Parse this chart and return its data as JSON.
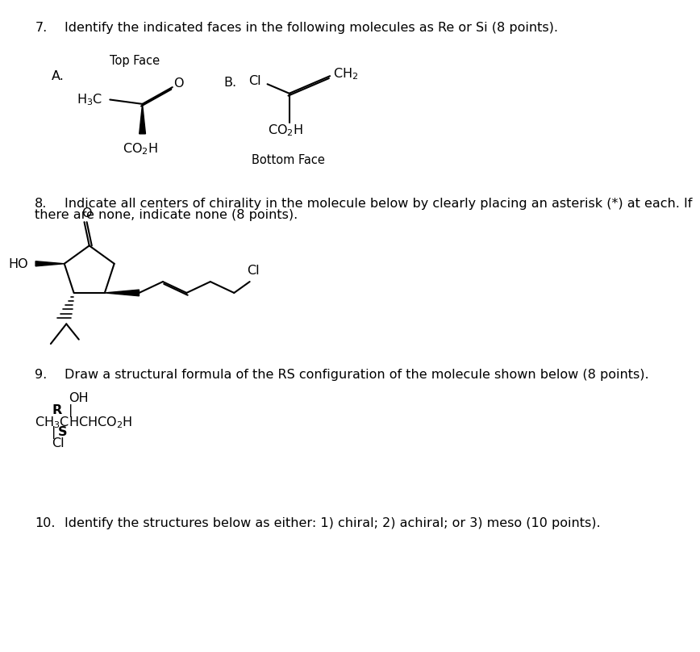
{
  "bg_color": "#ffffff",
  "text_color": "#000000",
  "q7_num": "7.",
  "q7_desc": "Identify the indicated faces in the following molecules as Re or Si (8 points).",
  "q7_A": "A.",
  "q7_topface": "Top Face",
  "q7_B": "B.",
  "q7_bottomface": "Bottom Face",
  "q8_num": "8.",
  "q8_desc": "Indicate all centers of chirality in the molecule below by clearly placing an asterisk (*) at each. If",
  "q8_desc2": "there are none, indicate none (8 points).",
  "q9_num": "9.",
  "q9_desc": "Draw a structural formula of the RS configuration of the molecule shown below (8 points).",
  "q10_num": "10.",
  "q10_desc": "Identify the structures below as either: 1) chiral; 2) achiral; or 3) meso (10 points).",
  "fs": 11.5
}
